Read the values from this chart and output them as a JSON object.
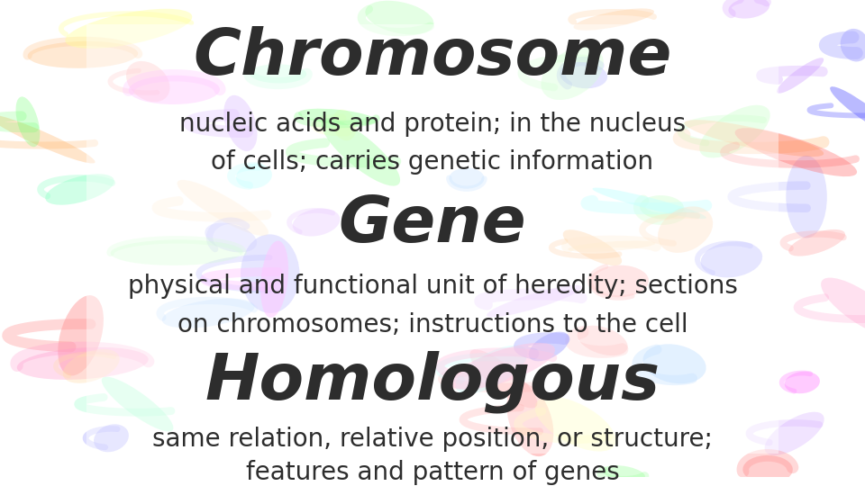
{
  "bg_color": "#ffffff",
  "title1": "Chromosome",
  "desc1_line1": "nucleic acids and protein; in the nucleus",
  "desc1_line2": "of cells; carries genetic information",
  "title2": "Gene",
  "desc2_line1": "physical and functional unit of heredity; sections",
  "desc2_line2": "on chromosomes; instructions to the cell",
  "title3": "Homologous",
  "desc3_line1": "same relation, relative position, or structure;",
  "desc3_line2": "features and pattern of genes",
  "title_color": "#2d2d2d",
  "desc_color": "#2d2d2d",
  "title_fontsize": 52,
  "desc_fontsize": 20,
  "title_font": "Arial Rounded MT Bold",
  "desc_font": "Arial"
}
